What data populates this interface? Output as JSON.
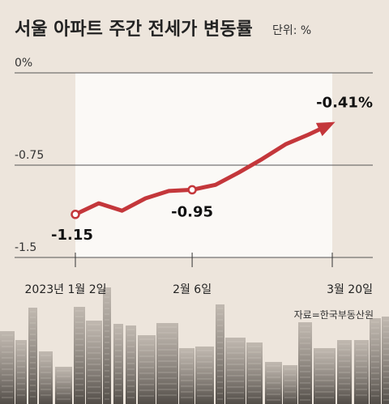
{
  "chart_data": {
    "type": "line",
    "title": "서울 아파트 주간 전세가 변동률",
    "unit": "단위: %",
    "source": "자료=한국부동산원",
    "y_ticks": [
      {
        "value": 0,
        "label": "0%"
      },
      {
        "value": -0.75,
        "label": "-0.75"
      },
      {
        "value": -1.5,
        "label": "-1.5"
      }
    ],
    "ylim": [
      -1.5,
      0
    ],
    "x_labels": [
      "2023년 1월 2일",
      "2월 6일",
      "3월 20일"
    ],
    "series": [
      {
        "values": [
          -1.15,
          -1.06,
          -1.12,
          -1.02,
          -0.96,
          -0.95,
          -0.91,
          -0.81,
          -0.7,
          -0.58,
          -0.5,
          -0.41
        ]
      }
    ],
    "data_labels": [
      {
        "index": 0,
        "label": "-1.15"
      },
      {
        "index": 5,
        "label": "-0.95"
      },
      {
        "index": 11,
        "label": "-0.41%"
      }
    ],
    "line_color": "#c4373b",
    "grid": true
  }
}
